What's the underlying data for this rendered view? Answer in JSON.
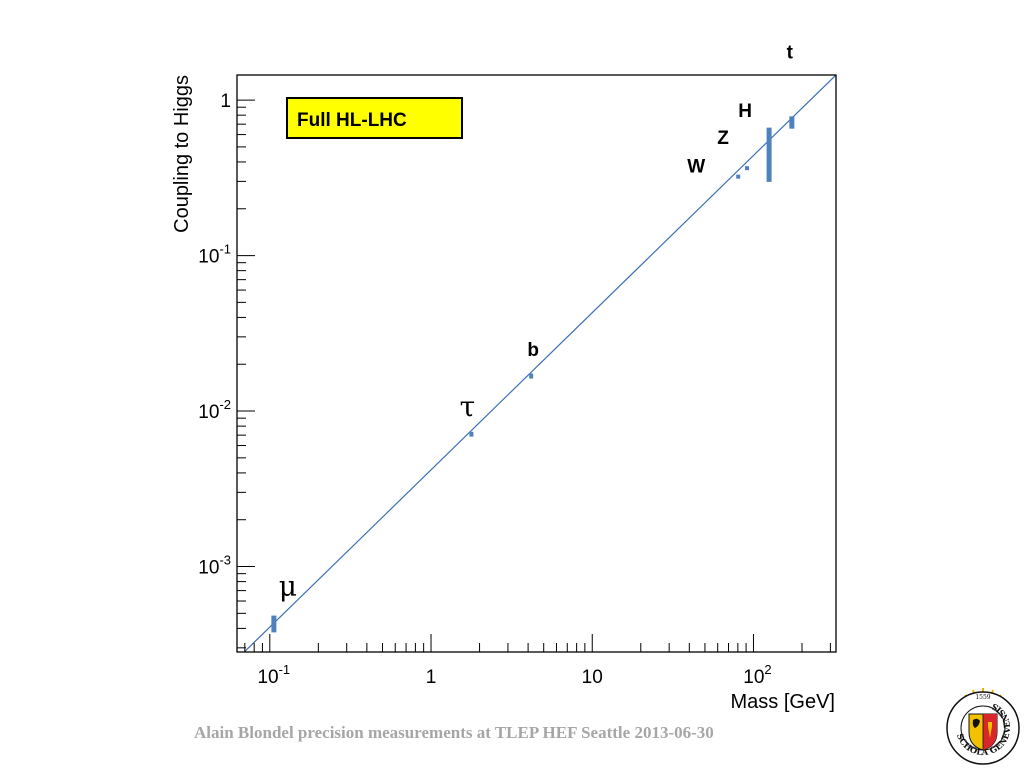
{
  "chart_data": {
    "type": "scatter",
    "x_scale": "log",
    "y_scale": "log",
    "xlabel": "Mass [GeV]",
    "ylabel": "Coupling to Higgs",
    "xlim": [
      0.0626,
      325
    ],
    "ylim": [
      0.000282,
      1.45
    ],
    "x_ticks": [
      {
        "base": "10",
        "exp": "-1",
        "value": 0.1
      },
      {
        "base": "1",
        "exp": "",
        "value": 1
      },
      {
        "base": "10",
        "exp": "",
        "value": 10
      },
      {
        "base": "10",
        "exp": "2",
        "value": 100
      }
    ],
    "y_ticks": [
      {
        "base": "1",
        "exp": "",
        "value": 1
      },
      {
        "base": "10",
        "exp": "-1",
        "value": 0.1
      },
      {
        "base": "10",
        "exp": "-2",
        "value": 0.01
      },
      {
        "base": "10",
        "exp": "-3",
        "value": 0.001
      }
    ],
    "legend_box": "Full HL-LHC",
    "reference_line": {
      "x0": 0.0626,
      "y0": 0.000254,
      "x1": 325,
      "y1": 1.45,
      "color": "#3a6fb5"
    },
    "point_color": "#4f81bd",
    "points": [
      {
        "name": "μ",
        "x": 0.106,
        "y": 0.00043,
        "y_lo": 0.00038,
        "y_hi": 0.00048
      },
      {
        "name": "τ",
        "x": 1.78,
        "y": 0.0071,
        "y_lo": 0.0069,
        "y_hi": 0.0073
      },
      {
        "name": "b",
        "x": 4.18,
        "y": 0.0168,
        "y_lo": 0.0163,
        "y_hi": 0.0173
      },
      {
        "name": "W",
        "x": 80.4,
        "y": 0.323,
        "y_lo": 0.317,
        "y_hi": 0.329
      },
      {
        "name": "Z",
        "x": 91.2,
        "y": 0.367,
        "y_lo": 0.361,
        "y_hi": 0.373
      },
      {
        "name": "H",
        "x": 125,
        "y": 0.45,
        "y_lo": 0.3,
        "y_hi": 0.66
      },
      {
        "name": "t",
        "x": 173,
        "y": 0.72,
        "y_lo": 0.66,
        "y_hi": 0.78
      }
    ]
  },
  "footer": "Alain Blondel precision measurements at TLEP HEF Seattle 2013-06-30",
  "seal": {
    "top_text": "1559",
    "ring_text": "SCHOLA GENEVENSIS"
  }
}
